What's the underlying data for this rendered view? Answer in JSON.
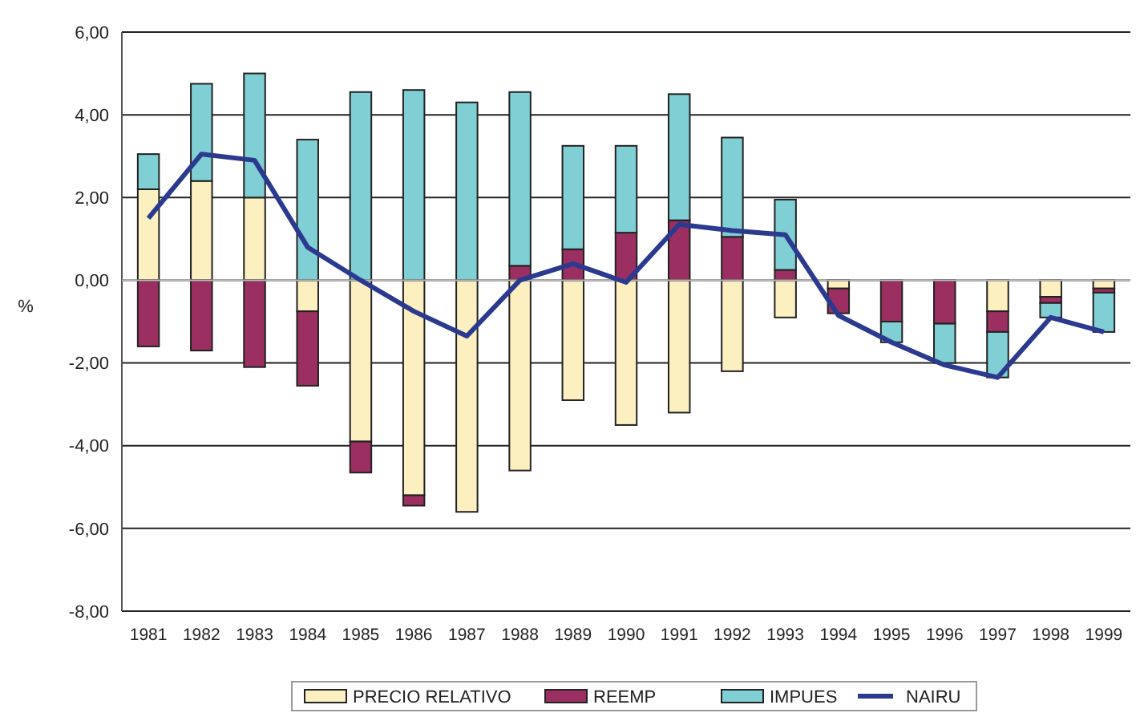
{
  "chart_data": {
    "type": "bar",
    "stacked": true,
    "ylabel": "%",
    "categories": [
      "1981",
      "1982",
      "1983",
      "1984",
      "1985",
      "1986",
      "1987",
      "1988",
      "1989",
      "1990",
      "1991",
      "1992",
      "1993",
      "1994",
      "1995",
      "1996",
      "1997",
      "1998",
      "1999"
    ],
    "series": [
      {
        "name": "PRECIO RELATIVO",
        "color": "#fcefc0",
        "values": [
          2.2,
          2.4,
          2.0,
          -0.75,
          -3.9,
          -5.2,
          -5.6,
          -4.6,
          -2.9,
          -3.5,
          -3.2,
          -2.2,
          -0.9,
          -0.2,
          0,
          0,
          -0.75,
          -0.4,
          -0.2
        ]
      },
      {
        "name": "REEMP",
        "color": "#9c2f62",
        "values": [
          -1.6,
          -1.7,
          -2.1,
          -1.8,
          -0.75,
          -0.25,
          0,
          0.35,
          0.75,
          1.15,
          1.45,
          1.05,
          0.25,
          -0.6,
          -1.0,
          -1.05,
          -0.5,
          -0.15,
          -0.1
        ]
      },
      {
        "name": "IMPUES",
        "color": "#80cfd4",
        "values": [
          0.85,
          2.35,
          3.0,
          3.4,
          4.55,
          4.6,
          4.3,
          4.2,
          2.5,
          2.1,
          3.05,
          2.4,
          1.7,
          0,
          -0.5,
          -0.95,
          -1.1,
          -0.35,
          -0.95
        ]
      },
      {
        "name": "NAIRU",
        "type": "line",
        "color": "#2b3a8f",
        "values": [
          1.5,
          3.05,
          2.9,
          0.8,
          0.0,
          -0.75,
          -1.35,
          0.0,
          0.4,
          -0.05,
          1.35,
          1.2,
          1.1,
          -0.85,
          -1.5,
          -2.05,
          -2.35,
          -0.9,
          -1.25
        ]
      }
    ],
    "ylim": [
      -8,
      6
    ],
    "yticks": [
      {
        "value": -8,
        "label": "-8,00"
      },
      {
        "value": -6,
        "label": "-6,00"
      },
      {
        "value": -4,
        "label": "-4,00"
      },
      {
        "value": -2,
        "label": "-2,00"
      },
      {
        "value": 0,
        "label": "0,00"
      },
      {
        "value": 2,
        "label": "2,00"
      },
      {
        "value": 4,
        "label": "4,00"
      },
      {
        "value": 6,
        "label": "6,00"
      }
    ],
    "grid": "y",
    "legend": "bottom",
    "marker": "none",
    "line_style": "solid"
  }
}
